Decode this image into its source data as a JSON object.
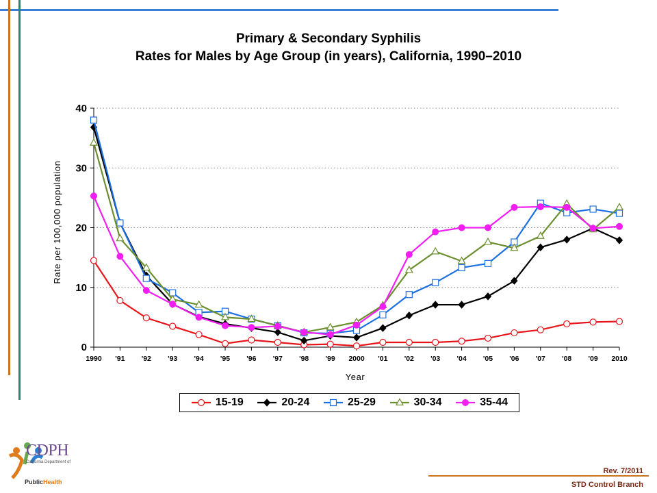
{
  "chart_data": {
    "type": "line",
    "title": "Primary & Secondary Syphilis",
    "subtitle": "Rates for Males by Age Group (in years), California, 1990–2010",
    "xlabel": "Year",
    "ylabel": "Rate per 100,000 population",
    "ylim": [
      0,
      40
    ],
    "yticks": [
      0,
      10,
      20,
      30,
      40
    ],
    "grid": "horizontal-dotted",
    "legend_position": "bottom",
    "categories": [
      "1990",
      "'91",
      "'92",
      "'93",
      "'94",
      "'95",
      "'96",
      "'97",
      "'98",
      "'99",
      "2000",
      "'01",
      "'02",
      "'03",
      "'04",
      "'05",
      "'06",
      "'07",
      "'08",
      "'09",
      "2010"
    ],
    "series": [
      {
        "name": "15-19",
        "color": "#e8141a",
        "marker": "circle-open",
        "values": [
          14.5,
          7.8,
          4.9,
          3.5,
          2.1,
          0.6,
          1.2,
          0.8,
          0.4,
          0.5,
          0.2,
          0.8,
          0.8,
          0.8,
          1.0,
          1.5,
          2.4,
          2.9,
          3.9,
          4.2,
          4.3
        ]
      },
      {
        "name": "20-24",
        "color": "#000000",
        "marker": "diamond-filled",
        "values": [
          36.8,
          20.8,
          12.0,
          7.2,
          5.1,
          3.9,
          3.2,
          2.5,
          1.1,
          1.9,
          1.6,
          3.2,
          5.3,
          7.1,
          7.1,
          8.5,
          11.1,
          16.7,
          18.0,
          19.9,
          17.9
        ]
      },
      {
        "name": "25-29",
        "color": "#1c6fe0",
        "marker": "square-open",
        "values": [
          38.0,
          20.8,
          11.5,
          9.1,
          5.8,
          6.0,
          4.7,
          3.6,
          2.4,
          2.3,
          2.8,
          5.4,
          8.8,
          10.8,
          13.3,
          14.0,
          17.6,
          24.1,
          22.5,
          23.1,
          22.4
        ]
      },
      {
        "name": "30-34",
        "color": "#6b8e2f",
        "marker": "triangle-open",
        "values": [
          34.2,
          18.2,
          13.3,
          8.0,
          7.1,
          5.0,
          4.7,
          3.6,
          2.5,
          3.3,
          4.2,
          7.0,
          12.9,
          16.0,
          14.4,
          17.6,
          16.6,
          18.6,
          24.0,
          19.7,
          23.4
        ]
      },
      {
        "name": "35-44",
        "color": "#f01ef0",
        "marker": "circle-filled",
        "values": [
          25.3,
          15.2,
          9.5,
          7.2,
          5.0,
          3.6,
          3.3,
          3.5,
          2.5,
          2.1,
          3.7,
          6.8,
          15.5,
          19.3,
          20.0,
          20.0,
          23.4,
          23.5,
          23.4,
          19.9,
          20.2
        ]
      }
    ]
  },
  "logo": {
    "text": "CDPH",
    "subtext": "California Department of",
    "public": "Public",
    "health": "Health"
  },
  "footer": {
    "revision": "Rev. 7/2011",
    "branch": "STD Control Branch"
  },
  "colors": {
    "orange_rule": "#c8741e",
    "teal_rule": "#1b8a72",
    "blue_rule": "#3b7fd4"
  }
}
